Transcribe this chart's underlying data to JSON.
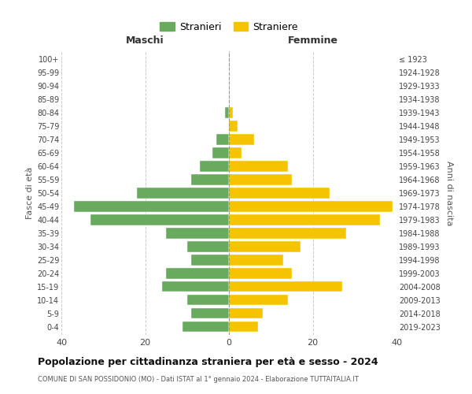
{
  "age_groups": [
    "0-4",
    "5-9",
    "10-14",
    "15-19",
    "20-24",
    "25-29",
    "30-34",
    "35-39",
    "40-44",
    "45-49",
    "50-54",
    "55-59",
    "60-64",
    "65-69",
    "70-74",
    "75-79",
    "80-84",
    "85-89",
    "90-94",
    "95-99",
    "100+"
  ],
  "birth_years": [
    "2019-2023",
    "2014-2018",
    "2009-2013",
    "2004-2008",
    "1999-2003",
    "1994-1998",
    "1989-1993",
    "1984-1988",
    "1979-1983",
    "1974-1978",
    "1969-1973",
    "1964-1968",
    "1959-1963",
    "1954-1958",
    "1949-1953",
    "1944-1948",
    "1939-1943",
    "1934-1938",
    "1929-1933",
    "1924-1928",
    "≤ 1923"
  ],
  "stranieri": [
    11,
    9,
    10,
    16,
    15,
    9,
    10,
    15,
    33,
    37,
    22,
    9,
    7,
    4,
    3,
    0,
    1,
    0,
    0,
    0,
    0
  ],
  "straniere": [
    7,
    8,
    14,
    27,
    15,
    13,
    17,
    28,
    36,
    39,
    24,
    15,
    14,
    3,
    6,
    2,
    1,
    0,
    0,
    0,
    0
  ],
  "male_color": "#6aaa5e",
  "female_color": "#f5c400",
  "background_color": "#ffffff",
  "grid_color": "#cccccc",
  "title": "Popolazione per cittadinanza straniera per età e sesso - 2024",
  "subtitle": "COMUNE DI SAN POSSIDONIO (MO) - Dati ISTAT al 1° gennaio 2024 - Elaborazione TUTTAITALIA.IT",
  "xlabel_left": "Maschi",
  "xlabel_right": "Femmine",
  "ylabel_left": "Fasce di età",
  "ylabel_right": "Anni di nascita",
  "legend_stranieri": "Stranieri",
  "legend_straniere": "Straniere",
  "xlim": 40,
  "xticks": [
    -40,
    -20,
    0,
    20,
    40
  ],
  "xtick_labels": [
    "40",
    "20",
    "0",
    "20",
    "40"
  ]
}
